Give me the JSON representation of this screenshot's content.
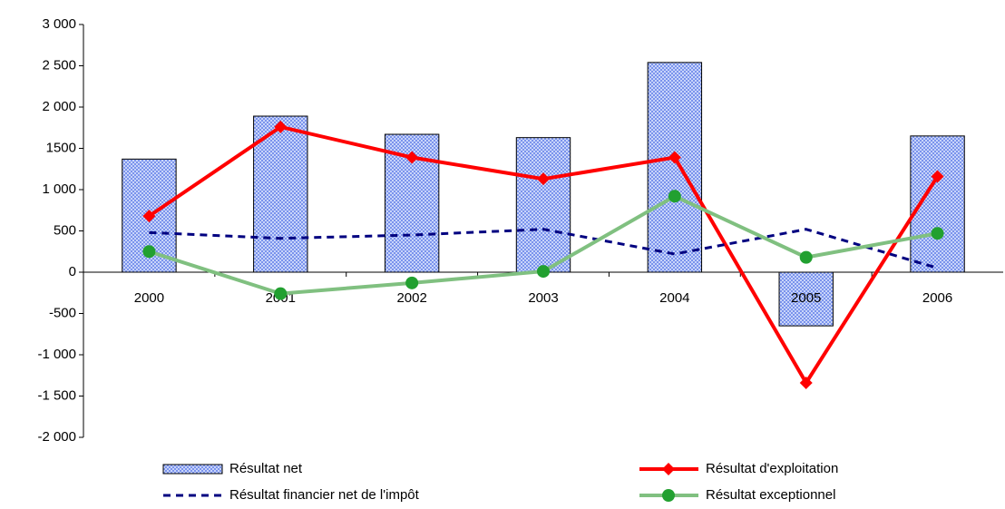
{
  "chart_data": {
    "type": "bar",
    "categories": [
      "2000",
      "2001",
      "2002",
      "2003",
      "2004",
      "2005",
      "2006"
    ],
    "series": [
      {
        "name": "Résultat net",
        "type": "bar",
        "color": "#99aef5",
        "values": [
          1370,
          1890,
          1670,
          1630,
          2540,
          -650,
          1650
        ]
      },
      {
        "name": "Résultat d'exploitation",
        "type": "line",
        "color": "#ff0000",
        "marker": "diamond",
        "dash": false,
        "values": [
          680,
          1760,
          1390,
          1130,
          1390,
          -1340,
          1160
        ]
      },
      {
        "name": "Résultat financier net de l'impôt",
        "type": "line",
        "color": "#000080",
        "marker": "none",
        "dash": true,
        "values": [
          480,
          410,
          450,
          520,
          220,
          520,
          50
        ]
      },
      {
        "name": "Résultat exceptionnel",
        "type": "line",
        "color": "#80c080",
        "marker": "circle",
        "dash": false,
        "values": [
          250,
          -260,
          -130,
          10,
          920,
          180,
          470
        ]
      }
    ],
    "ylim": [
      -2000,
      3000
    ],
    "yticks": [
      {
        "value": -2000,
        "label": "-2 000"
      },
      {
        "value": -1500,
        "label": "-1 500"
      },
      {
        "value": -1000,
        "label": "-1 000"
      },
      -500,
      0,
      500,
      {
        "value": 1000,
        "label": "1 000"
      },
      {
        "value": 1500,
        "label": "1500"
      },
      {
        "value": 2000,
        "label": "2 000"
      },
      {
        "value": 2500,
        "label": "2 500"
      },
      {
        "value": 3000,
        "label": "3 000"
      }
    ],
    "legend": "bottom"
  }
}
